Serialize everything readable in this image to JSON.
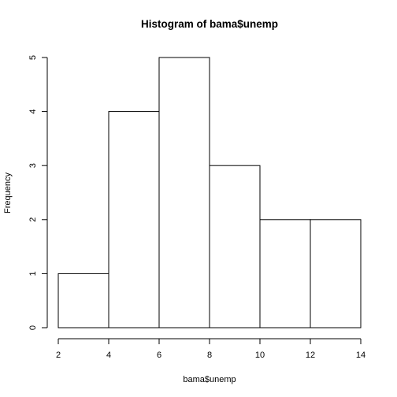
{
  "chart_data": {
    "type": "bar",
    "title": "Histogram of bama$unemp",
    "xlabel": "bama$unemp",
    "ylabel": "Frequency",
    "bins": [
      {
        "from": 2,
        "to": 4,
        "count": 1
      },
      {
        "from": 4,
        "to": 6,
        "count": 4
      },
      {
        "from": 6,
        "to": 8,
        "count": 5
      },
      {
        "from": 8,
        "to": 10,
        "count": 3
      },
      {
        "from": 10,
        "to": 12,
        "count": 2
      },
      {
        "from": 12,
        "to": 14,
        "count": 2
      }
    ],
    "xticks": [
      "2",
      "4",
      "6",
      "8",
      "10",
      "12",
      "14"
    ],
    "yticks": [
      "0",
      "1",
      "2",
      "3",
      "4",
      "5"
    ],
    "xlim": [
      2,
      14
    ],
    "ylim": [
      0,
      5
    ],
    "grid": false,
    "legend": "none"
  }
}
